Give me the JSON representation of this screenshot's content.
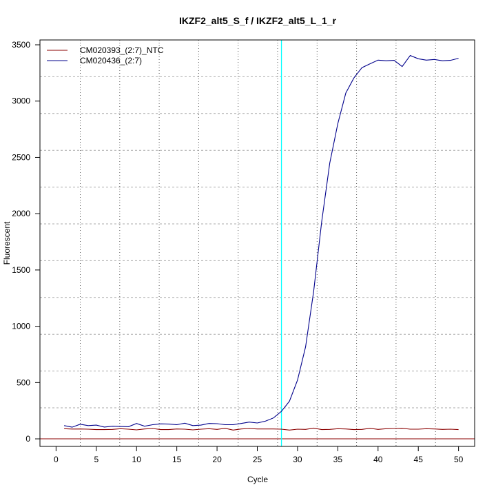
{
  "chart_data": {
    "type": "line",
    "title": "IKZF2_alt5_S_f / IKZF2_alt5_L_1_r",
    "xlabel": "Cycle",
    "ylabel": "Fluorescent",
    "xlim": [
      -2,
      52
    ],
    "ylim": [
      -67,
      3543
    ],
    "xticks": [
      0,
      5,
      10,
      15,
      20,
      25,
      30,
      35,
      40,
      45,
      50
    ],
    "yticks": [
      0,
      500,
      1000,
      1500,
      2000,
      2500,
      3000,
      3500
    ],
    "grid": true,
    "legend_position": "top-left",
    "threshold_cycle": 28,
    "baseline": 0,
    "colors": {
      "threshold": "#00FFFF",
      "baseline": "#8B0000"
    },
    "x": [
      1,
      2,
      3,
      4,
      5,
      6,
      7,
      8,
      9,
      10,
      11,
      12,
      13,
      14,
      15,
      16,
      17,
      18,
      19,
      20,
      21,
      22,
      23,
      24,
      25,
      26,
      27,
      28,
      29,
      30,
      31,
      32,
      33,
      34,
      35,
      36,
      37,
      38,
      39,
      40,
      41,
      42,
      43,
      44,
      45,
      46,
      47,
      48,
      49,
      50
    ],
    "series": [
      {
        "name": "CM020393_(2:7)_NTC",
        "color": "#8B0000",
        "values": [
          90,
          87,
          88,
          86,
          82,
          82,
          84,
          90,
          86,
          80,
          88,
          92,
          82,
          82,
          88,
          86,
          80,
          86,
          90,
          84,
          94,
          78,
          88,
          92,
          88,
          88,
          88,
          86,
          78,
          86,
          84,
          96,
          82,
          84,
          90,
          88,
          82,
          84,
          94,
          84,
          90,
          92,
          94,
          86,
          86,
          90,
          88,
          84,
          86,
          82
        ]
      },
      {
        "name": "CM020436_(2:7)",
        "color": "#00008B",
        "values": [
          118,
          104,
          130,
          118,
          122,
          105,
          112,
          110,
          108,
          137,
          112,
          126,
          133,
          131,
          126,
          139,
          118,
          122,
          137,
          135,
          126,
          126,
          137,
          149,
          141,
          157,
          186,
          245,
          335,
          522,
          818,
          1310,
          1930,
          2450,
          2800,
          3072,
          3205,
          3297,
          3331,
          3364,
          3358,
          3362,
          3307,
          3405,
          3376,
          3364,
          3370,
          3358,
          3362,
          3380
        ]
      }
    ]
  }
}
